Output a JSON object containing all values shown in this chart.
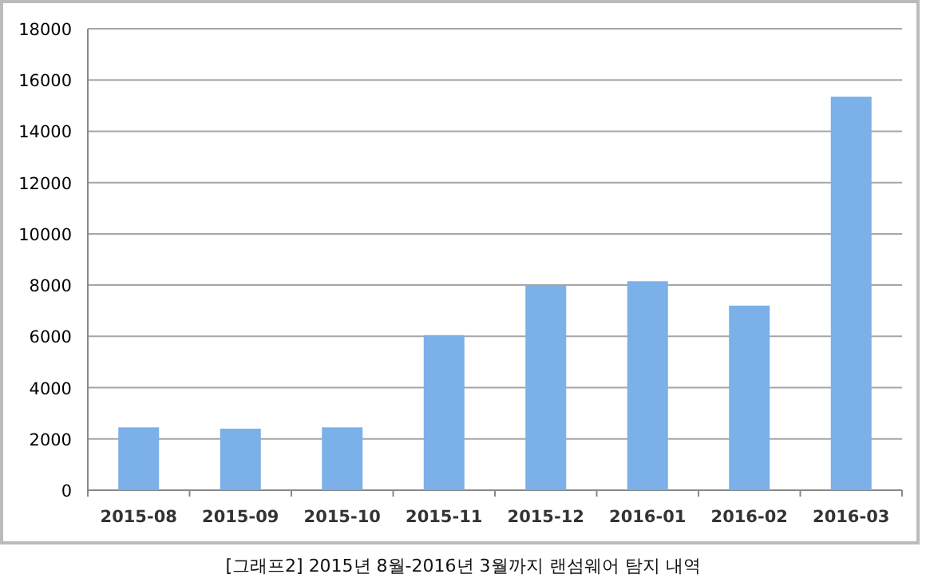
{
  "chart_data": {
    "type": "bar",
    "categories": [
      "2015-08",
      "2015-09",
      "2015-10",
      "2015-11",
      "2015-12",
      "2016-01",
      "2016-02",
      "2016-03"
    ],
    "values": [
      2450,
      2400,
      2450,
      6050,
      8000,
      8150,
      7200,
      15350
    ],
    "color": "#7bb0e8",
    "ylim": [
      0,
      18000
    ],
    "yticks": [
      0,
      2000,
      4000,
      6000,
      8000,
      10000,
      12000,
      14000,
      16000,
      18000
    ],
    "grid": "y",
    "annotations": [
      "[그래프2] 2015년 8월-2016년 3월까지 랜섬웨어 탐지 내역"
    ]
  }
}
